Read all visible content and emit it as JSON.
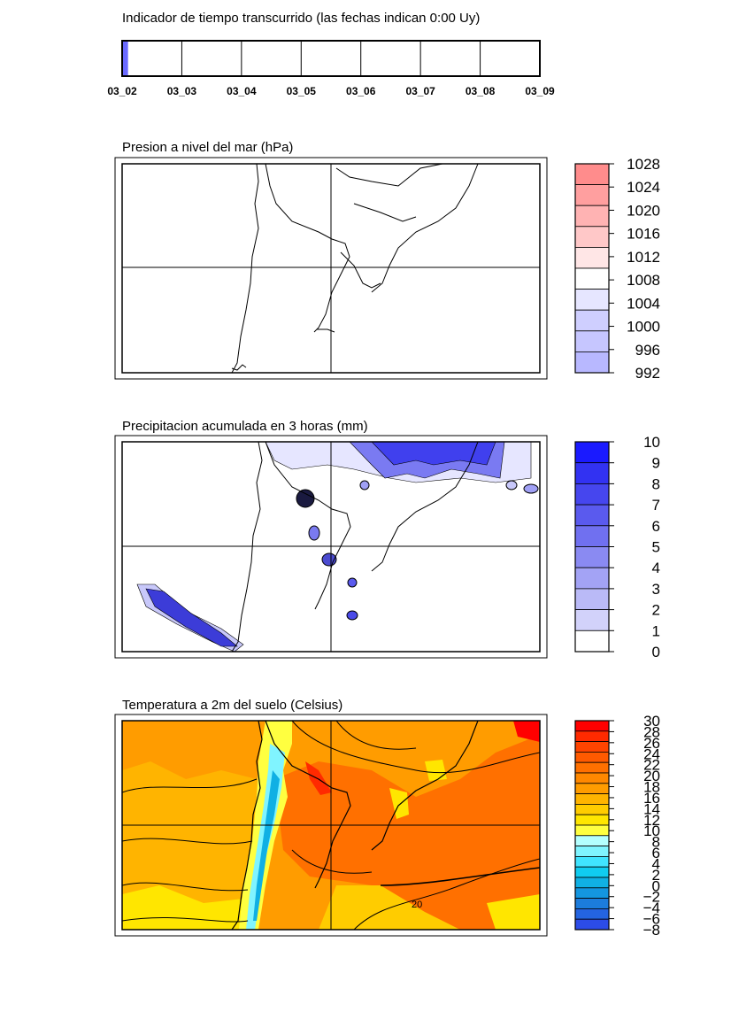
{
  "timeline": {
    "title": "Indicador de tiempo transcurrido (las fechas indican 0:00 Uy)",
    "dates": [
      "03_02",
      "03_03",
      "03_04",
      "03_05",
      "03_06",
      "03_07",
      "03_08",
      "03_09"
    ],
    "progress": 0.012,
    "fill_color": "#6a6aff"
  },
  "panels": [
    {
      "title": "Presion a nivel del mar (hPa)",
      "colorbar": {
        "labels": [
          "1028",
          "1024",
          "1020",
          "1016",
          "1012",
          "1008",
          "1004",
          "1000",
          "996",
          "992"
        ],
        "colors": [
          "#ff8c8c",
          "#ff9f9f",
          "#ffb3b3",
          "#ffc8c8",
          "#ffe6e6",
          "#ffffff",
          "#e6e6ff",
          "#cfcfff",
          "#c6c6ff",
          "#b8b8ff"
        ]
      }
    },
    {
      "title": "Precipitacion acumulada en 3 horas (mm)",
      "colorbar": {
        "labels": [
          "10",
          "9",
          "8",
          "7",
          "6",
          "5",
          "4",
          "3",
          "2",
          "1",
          "0"
        ],
        "colors": [
          "#1a1aff",
          "#3232f2",
          "#4646ee",
          "#5a5aee",
          "#7070f0",
          "#8a8af2",
          "#a3a3f5",
          "#babaf7",
          "#d2d2fa",
          "#ffffff"
        ]
      }
    },
    {
      "title": "Temperatura a 2m del suelo (Celsius)",
      "colorbar": {
        "labels": [
          "30",
          "28",
          "26",
          "24",
          "22",
          "20",
          "18",
          "16",
          "14",
          "12",
          "10",
          "8",
          "6",
          "4",
          "2",
          "0",
          "−2",
          "−4",
          "−6",
          "−8"
        ],
        "colors": [
          "#ff0000",
          "#ff2a00",
          "#ff4400",
          "#ff5a00",
          "#ff7000",
          "#ff8800",
          "#ff9c00",
          "#ffb400",
          "#ffcc00",
          "#ffe600",
          "#ffff40",
          "#b4ffff",
          "#80f4ff",
          "#40e4ff",
          "#10ccf0",
          "#10b0e4",
          "#1496e0",
          "#1c7cdc",
          "#2464e0",
          "#2c4ce8"
        ]
      },
      "annotation": "20"
    }
  ]
}
